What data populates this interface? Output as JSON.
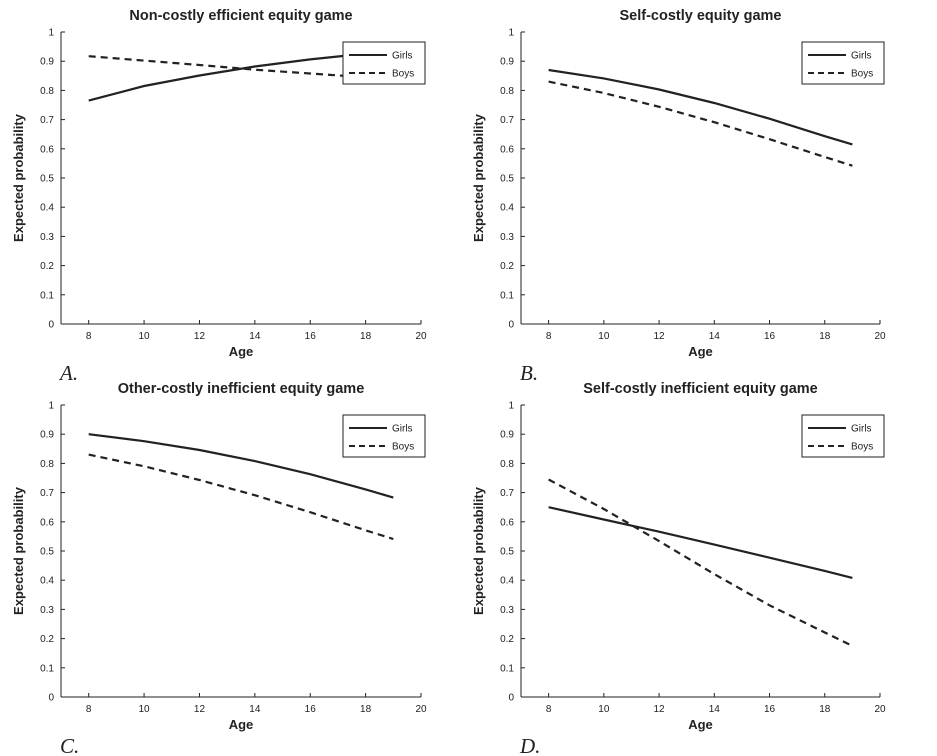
{
  "chart_data": [
    {
      "type": "line",
      "title": "Non-costly efficient equity game",
      "xlabel": "Age",
      "ylabel": "Expected probability",
      "panel_label": "A.",
      "xlim": [
        7,
        20
      ],
      "ylim": [
        0,
        1
      ],
      "x_ticks": [
        "8",
        "10",
        "12",
        "14",
        "16",
        "18",
        "20"
      ],
      "y_ticks": [
        "0",
        "0.1",
        "0.2",
        "0.3",
        "0.4",
        "0.5",
        "0.6",
        "0.7",
        "0.8",
        "0.9",
        "1"
      ],
      "legend": "top-right",
      "grid": false,
      "series": [
        {
          "name": "Girls",
          "style": "solid",
          "x": [
            8,
            10,
            12,
            14,
            16,
            18,
            19
          ],
          "values": [
            0.765,
            0.815,
            0.851,
            0.882,
            0.906,
            0.926,
            0.937
          ]
        },
        {
          "name": "Boys",
          "style": "dashed",
          "x": [
            8,
            10,
            12,
            14,
            16,
            18,
            19
          ],
          "values": [
            0.917,
            0.902,
            0.887,
            0.871,
            0.858,
            0.845,
            0.838
          ]
        }
      ]
    },
    {
      "type": "line",
      "title": "Self-costly equity game",
      "xlabel": "Age",
      "ylabel": "Expected probability",
      "panel_label": "B.",
      "xlim": [
        7,
        20
      ],
      "ylim": [
        0,
        1
      ],
      "x_ticks": [
        "8",
        "10",
        "12",
        "14",
        "16",
        "18",
        "20"
      ],
      "y_ticks": [
        "0",
        "0.1",
        "0.2",
        "0.3",
        "0.4",
        "0.5",
        "0.6",
        "0.7",
        "0.8",
        "0.9",
        "1"
      ],
      "legend": "top-right",
      "grid": false,
      "series": [
        {
          "name": "Girls",
          "style": "solid",
          "x": [
            8,
            10,
            12,
            14,
            16,
            18,
            19
          ],
          "values": [
            0.87,
            0.841,
            0.803,
            0.757,
            0.703,
            0.643,
            0.615
          ]
        },
        {
          "name": "Boys",
          "style": "dashed",
          "x": [
            8,
            10,
            12,
            14,
            16,
            18,
            19
          ],
          "values": [
            0.83,
            0.791,
            0.744,
            0.691,
            0.633,
            0.572,
            0.542
          ]
        }
      ]
    },
    {
      "type": "line",
      "title": "Other-costly inefficient equity game",
      "xlabel": "Age",
      "ylabel": "Expected probability",
      "panel_label": "C.",
      "xlim": [
        7,
        20
      ],
      "ylim": [
        0,
        1
      ],
      "x_ticks": [
        "8",
        "10",
        "12",
        "14",
        "16",
        "18",
        "20"
      ],
      "y_ticks": [
        "0",
        "0.1",
        "0.2",
        "0.3",
        "0.4",
        "0.5",
        "0.6",
        "0.7",
        "0.8",
        "0.9",
        "1"
      ],
      "legend": "top-right",
      "grid": false,
      "series": [
        {
          "name": "Girls",
          "style": "solid",
          "x": [
            8,
            10,
            12,
            14,
            16,
            18,
            19
          ],
          "values": [
            0.9,
            0.876,
            0.846,
            0.808,
            0.763,
            0.711,
            0.683
          ]
        },
        {
          "name": "Boys",
          "style": "dashed",
          "x": [
            8,
            10,
            12,
            14,
            16,
            18,
            19
          ],
          "values": [
            0.83,
            0.79,
            0.743,
            0.691,
            0.633,
            0.571,
            0.541
          ]
        }
      ]
    },
    {
      "type": "line",
      "title": "Self-costly inefficient equity game",
      "xlabel": "Age",
      "ylabel": "Expected probability",
      "panel_label": "D.",
      "xlim": [
        7,
        20
      ],
      "ylim": [
        0,
        1
      ],
      "x_ticks": [
        "8",
        "10",
        "12",
        "14",
        "16",
        "18",
        "20"
      ],
      "y_ticks": [
        "0",
        "0.1",
        "0.2",
        "0.3",
        "0.4",
        "0.5",
        "0.6",
        "0.7",
        "0.8",
        "0.9",
        "1"
      ],
      "legend": "top-right",
      "grid": false,
      "series": [
        {
          "name": "Girls",
          "style": "solid",
          "x": [
            8,
            10,
            12,
            14,
            16,
            18,
            19
          ],
          "values": [
            0.65,
            0.608,
            0.566,
            0.522,
            0.477,
            0.432,
            0.408
          ]
        },
        {
          "name": "Boys",
          "style": "dashed",
          "x": [
            8,
            10,
            12,
            14,
            16,
            18,
            19
          ],
          "values": [
            0.745,
            0.644,
            0.534,
            0.421,
            0.314,
            0.221,
            0.175
          ]
        }
      ]
    }
  ]
}
